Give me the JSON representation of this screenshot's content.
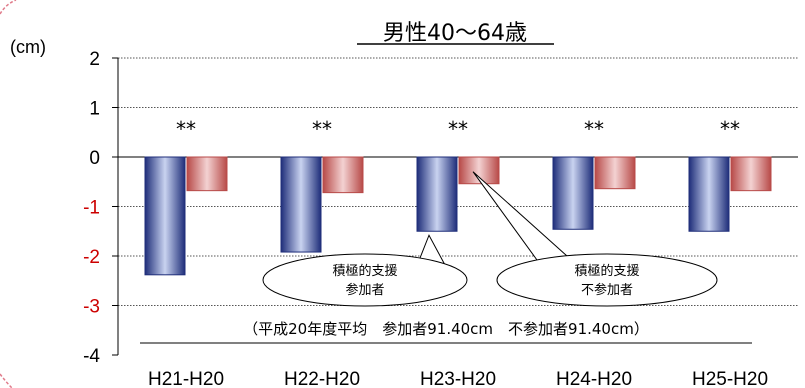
{
  "chart_data": {
    "type": "bar",
    "title": "男性40〜64歳",
    "ylabel": "(cm)",
    "ylim": [
      -4,
      2
    ],
    "yticks": [
      {
        "label": "2",
        "value": 2,
        "color": "#000000"
      },
      {
        "label": "1",
        "value": 1,
        "color": "#000000"
      },
      {
        "label": "0",
        "value": 0,
        "color": "#000000"
      },
      {
        "label": "-1",
        "value": -1,
        "color": "#cc0000"
      },
      {
        "label": "-2",
        "value": -2,
        "color": "#cc0000"
      },
      {
        "label": "-3",
        "value": -3,
        "color": "#cc0000"
      },
      {
        "label": "-4",
        "value": -4,
        "color": "#000000"
      }
    ],
    "categories": [
      "H21-H20",
      "H22-H20",
      "H23-H20",
      "H24-H20",
      "H25-H20"
    ],
    "series": [
      {
        "values": [
          -2.38,
          -1.92,
          -1.5,
          -1.46,
          -1.5
        ],
        "color": "#2e3f8f"
      },
      {
        "values": [
          -0.68,
          -0.72,
          -0.54,
          -0.64,
          -0.68
        ],
        "color": "#c0504d"
      }
    ],
    "significance": [
      "**",
      "**",
      "**",
      "**",
      "**"
    ],
    "callouts": [
      {
        "line1": "積極的支援",
        "line2": "参加者",
        "target_series": 0,
        "target_category": 2
      },
      {
        "line1": "積極的支援",
        "line2": "不参加者",
        "target_series": 1,
        "target_category": 2
      }
    ],
    "note": "（平成20年度平均　参加者91.40cm　不参加者91.40cm）",
    "grid": true
  }
}
